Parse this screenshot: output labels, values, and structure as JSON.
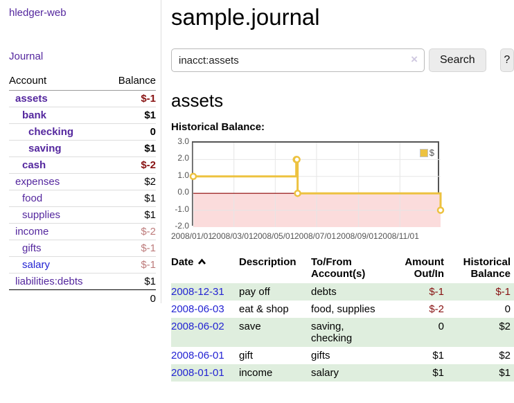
{
  "app_title": "hledger-web",
  "sidebar": {
    "journal_link": "Journal",
    "accounts": {
      "col_account": "Account",
      "col_balance": "Balance",
      "rows": [
        {
          "name": "assets",
          "balance": "$-1"
        },
        {
          "name": "bank",
          "balance": "$1"
        },
        {
          "name": "checking",
          "balance": "0"
        },
        {
          "name": "saving",
          "balance": "$1"
        },
        {
          "name": "cash",
          "balance": "$-2"
        },
        {
          "name": "expenses",
          "balance": "$2"
        },
        {
          "name": "food",
          "balance": "$1"
        },
        {
          "name": "supplies",
          "balance": "$1"
        },
        {
          "name": "income",
          "balance": "$-2"
        },
        {
          "name": "gifts",
          "balance": "$-1"
        },
        {
          "name": "salary",
          "balance": "$-1"
        },
        {
          "name": "liabilities:debts",
          "balance": "$1"
        }
      ],
      "total": "0"
    }
  },
  "main": {
    "title": "sample.journal",
    "search": {
      "value": "inacct:assets",
      "clear_icon": "×",
      "search_label": "Search",
      "help_label": "?"
    },
    "account_heading": "assets",
    "section_label": "Historical Balance:"
  },
  "chart_data": {
    "type": "line",
    "step": true,
    "title": "Historical Balance:",
    "series": [
      {
        "name": "$",
        "color": "#edc240",
        "points": [
          [
            "2008-01-01",
            1
          ],
          [
            "2008-06-01",
            2
          ],
          [
            "2008-06-02",
            2
          ],
          [
            "2008-06-03",
            0
          ],
          [
            "2008-12-31",
            -1
          ]
        ]
      }
    ],
    "x_range": [
      "2008-01-01",
      "2008-12-31"
    ],
    "x_tick_dates": [
      "2008-01-01",
      "2008-03-01",
      "2008-05-01",
      "2008-07-01",
      "2008-09-01",
      "2008-11-01"
    ],
    "x_tick_labels": [
      "2008/01/01",
      "2008/03/01",
      "2008/05/01",
      "2008/07/01",
      "2008/09/01",
      "2008/11/01"
    ],
    "y_ticks": [
      3.0,
      2.0,
      1.0,
      0.0,
      -1.0,
      -2.0
    ],
    "y_tick_labels": [
      "3.0",
      "2.0",
      "1.0",
      "0.0",
      "-1.0",
      "-2.0"
    ],
    "ylim": [
      -2,
      3
    ],
    "grid": true,
    "legend_position": "top-right",
    "negative_zone_color": "#fbdcdc",
    "zero_line_color": "#8b0000",
    "grid_color": "#e6e6e6",
    "border_color": "#545454"
  },
  "register": {
    "headers": {
      "date": "Date",
      "description": "Description",
      "accounts": "To/From Account(s)",
      "amount": "Amount Out/In",
      "balance": "Historical Balance"
    },
    "rows": [
      {
        "date": "2008-12-31",
        "description": "pay off",
        "accounts": "debts",
        "amount": "$-1",
        "balance": "$-1"
      },
      {
        "date": "2008-06-03",
        "description": "eat & shop",
        "accounts": "food, supplies",
        "amount": "$-2",
        "balance": "0"
      },
      {
        "date": "2008-06-02",
        "description": "save",
        "accounts": "saving, checking",
        "amount": "0",
        "balance": "$2"
      },
      {
        "date": "2008-06-01",
        "description": "gift",
        "accounts": "gifts",
        "amount": "$1",
        "balance": "$2"
      },
      {
        "date": "2008-01-01",
        "description": "income",
        "accounts": "salary",
        "amount": "$1",
        "balance": "$1"
      }
    ]
  }
}
